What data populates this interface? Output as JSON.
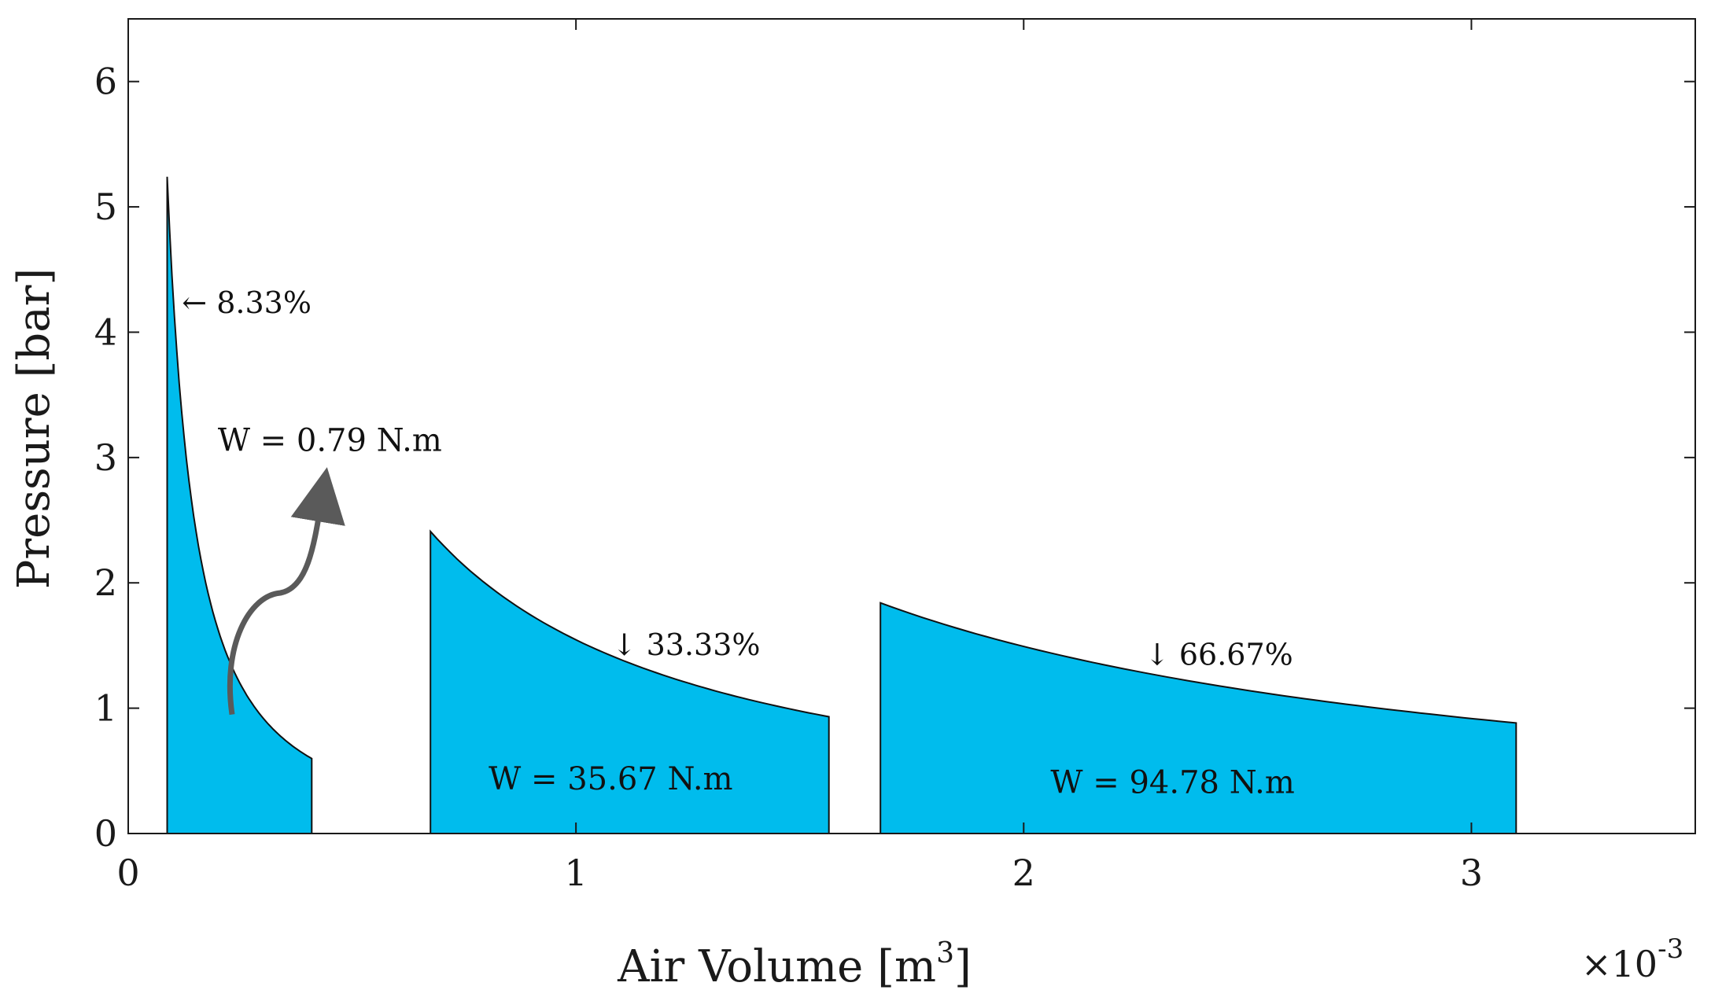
{
  "chart_data": {
    "type": "area",
    "title": "",
    "xlabel": "Air Volume [m",
    "xlabel_sup": "3",
    "xlabel_close": "]",
    "ylabel": "Pressure [bar]",
    "x_multiplier_base": "×10",
    "x_multiplier_exp": "-3",
    "xlim": [
      0,
      3.5
    ],
    "ylim": [
      0,
      6.5
    ],
    "xticks": [
      0,
      1,
      2,
      3
    ],
    "xtick_labels": [
      "0",
      "1",
      "2",
      "3"
    ],
    "yticks": [
      0,
      1,
      2,
      3,
      4,
      5,
      6
    ],
    "ytick_labels": [
      "0",
      "1",
      "2",
      "3",
      "4",
      "5",
      "6"
    ],
    "grid": false,
    "fill_color": "#00bced",
    "arrow_color": "#5a5a5a",
    "series": [
      {
        "x_start": 0.087,
        "x_end": 0.41,
        "p_start": 5.24,
        "p_end": 0.82,
        "exponent": 1.4
      },
      {
        "x_start": 0.675,
        "x_end": 1.565,
        "p_start": 2.41,
        "p_end": 0.88,
        "exponent": 1.13
      },
      {
        "x_start": 1.68,
        "x_end": 3.1,
        "p_start": 1.84,
        "p_end": 0.88,
        "exponent": 1.2
      }
    ],
    "annotations": [
      {
        "id": "pct-1",
        "text": "8.33%",
        "x": 0.12,
        "y": 4.23,
        "arrow": "←"
      },
      {
        "id": "pct-2",
        "text": "33.33%",
        "x": 1.08,
        "y": 1.5,
        "arrow": "↓"
      },
      {
        "id": "pct-3",
        "text": "66.67%",
        "x": 2.27,
        "y": 1.42,
        "arrow": "↓"
      }
    ],
    "work_labels": [
      {
        "id": "work-1",
        "text": "W = 0.79 N.m",
        "x": 0.2,
        "y": 3.14
      },
      {
        "id": "work-2",
        "text": "W = 35.67 N.m",
        "x": 0.805,
        "y": 0.44
      },
      {
        "id": "work-3",
        "text": "W = 94.78 N.m",
        "x": 2.06,
        "y": 0.41
      }
    ]
  }
}
